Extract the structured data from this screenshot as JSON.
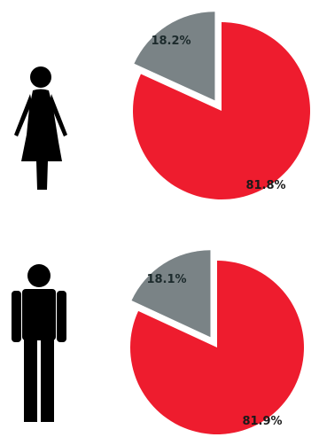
{
  "chart_data": [
    {
      "type": "pie",
      "title": "",
      "icon": "female-person-icon",
      "slices": [
        {
          "value": 18.2,
          "label": "18.2%",
          "color": "#7a8386",
          "exploded": true
        },
        {
          "value": 81.8,
          "label": "81.8%",
          "color": "#ee1c2e",
          "exploded": false
        }
      ]
    },
    {
      "type": "pie",
      "title": "",
      "icon": "male-person-icon",
      "slices": [
        {
          "value": 18.1,
          "label": "18.1%",
          "color": "#7a8386",
          "exploded": true
        },
        {
          "value": 81.9,
          "label": "81.9%",
          "color": "#ee1c2e",
          "exploded": false
        }
      ]
    }
  ],
  "colors": {
    "icon": "#000000",
    "label_on_gray": "#1c2a2c",
    "label_on_red": "#1a1a1a"
  }
}
